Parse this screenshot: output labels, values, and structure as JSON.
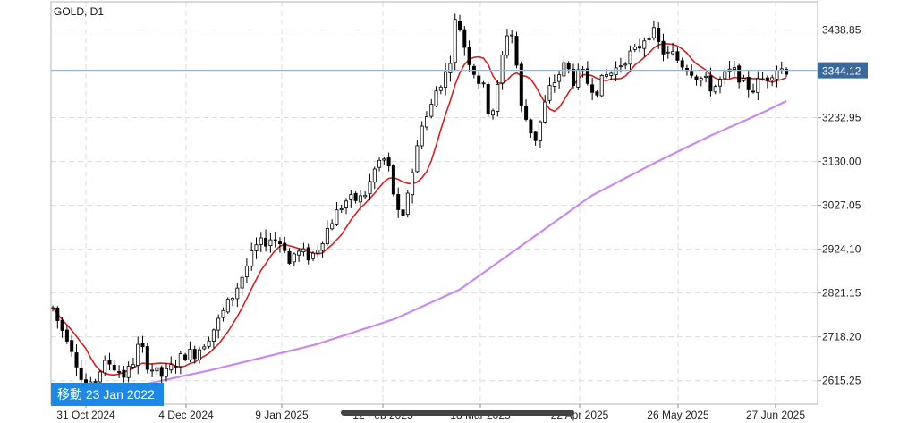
{
  "header": {
    "symbol_label": "GOLD, D1"
  },
  "goto_button": {
    "label": "移動 23 Jan 2022"
  },
  "chart_data": {
    "type": "candlestick",
    "symbol": "GOLD",
    "timeframe": "D1",
    "ylim": [
      2560,
      3505
    ],
    "y_ticks": [
      "3438.85",
      "3232.95",
      "3130.00",
      "3027.05",
      "2924.10",
      "2821.15",
      "2718.20",
      "2615.25"
    ],
    "x_ticks": [
      "31 Oct 2024",
      "4 Dec 2024",
      "9 Jan 2025",
      "12 Feb 2025",
      "18 Mar 2025",
      "22 Apr 2025",
      "26 May 2025",
      "27 Jun 2025"
    ],
    "current_price": "3344.12",
    "grid": true,
    "moving_averages": [
      {
        "color": "#d42020"
      },
      {
        "color": "#c98af0"
      }
    ],
    "candle_colors": {
      "bull": "#ffffff",
      "bear": "#000000"
    }
  }
}
